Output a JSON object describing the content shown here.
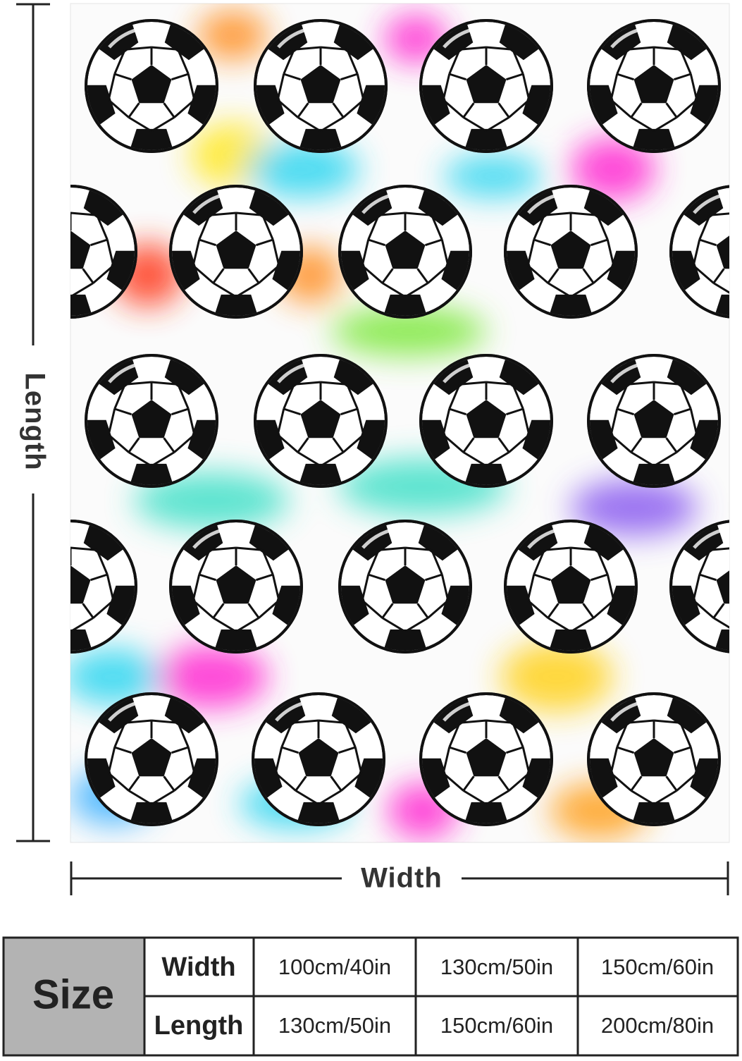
{
  "dimensions": {
    "length": "Length",
    "width": "Width"
  },
  "table": {
    "corner": "Size",
    "rows": [
      [
        "Width",
        "100cm/40in",
        "130cm/50in",
        "150cm/60in"
      ],
      [
        "Length",
        "130cm/50in",
        "150cm/60in",
        "200cm/80in"
      ]
    ]
  }
}
